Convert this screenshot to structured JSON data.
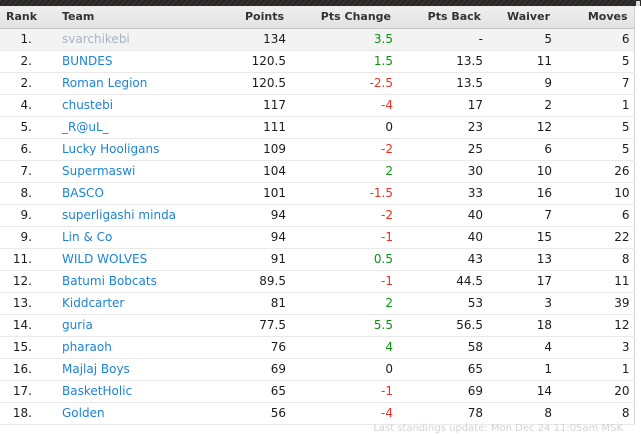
{
  "colors": {
    "link": "#1d83d4",
    "green": "#0f9312",
    "red": "#ee3124",
    "muted_team": "#aab4bd"
  },
  "table": {
    "headers": [
      "Rank",
      "Team",
      "Points",
      "Pts Change",
      "Pts Back",
      "Waiver",
      "Moves"
    ],
    "rows": [
      {
        "rank": "1.",
        "team": "svarchikebi",
        "points": "134",
        "pts_change": "3.5",
        "change_color": "green",
        "pts_back": "-",
        "waiver": "5",
        "moves": "6",
        "current": true
      },
      {
        "rank": "2.",
        "team": "BUNDES",
        "points": "120.5",
        "pts_change": "1.5",
        "change_color": "green",
        "pts_back": "13.5",
        "waiver": "11",
        "moves": "5",
        "current": false
      },
      {
        "rank": "2.",
        "team": "Roman Legion",
        "points": "120.5",
        "pts_change": "-2.5",
        "change_color": "red",
        "pts_back": "13.5",
        "waiver": "9",
        "moves": "7",
        "current": false
      },
      {
        "rank": "4.",
        "team": "chustebi",
        "points": "117",
        "pts_change": "-4",
        "change_color": "red",
        "pts_back": "17",
        "waiver": "2",
        "moves": "1",
        "current": false
      },
      {
        "rank": "5.",
        "team": "_R@uL_",
        "points": "111",
        "pts_change": "0",
        "change_color": "neutral",
        "pts_back": "23",
        "waiver": "12",
        "moves": "5",
        "current": false
      },
      {
        "rank": "6.",
        "team": "Lucky Hooligans",
        "points": "109",
        "pts_change": "-2",
        "change_color": "red",
        "pts_back": "25",
        "waiver": "6",
        "moves": "5",
        "current": false
      },
      {
        "rank": "7.",
        "team": "Supermaswi",
        "points": "104",
        "pts_change": "2",
        "change_color": "green",
        "pts_back": "30",
        "waiver": "10",
        "moves": "26",
        "current": false
      },
      {
        "rank": "8.",
        "team": "BASCO",
        "points": "101",
        "pts_change": "-1.5",
        "change_color": "red",
        "pts_back": "33",
        "waiver": "16",
        "moves": "10",
        "current": false
      },
      {
        "rank": "9.",
        "team": "superligashi minda",
        "points": "94",
        "pts_change": "-2",
        "change_color": "red",
        "pts_back": "40",
        "waiver": "7",
        "moves": "6",
        "current": false
      },
      {
        "rank": "9.",
        "team": "Lin & Co",
        "points": "94",
        "pts_change": "-1",
        "change_color": "red",
        "pts_back": "40",
        "waiver": "15",
        "moves": "22",
        "current": false
      },
      {
        "rank": "11.",
        "team": "WILD WOLVES",
        "points": "91",
        "pts_change": "0.5",
        "change_color": "green",
        "pts_back": "43",
        "waiver": "13",
        "moves": "8",
        "current": false
      },
      {
        "rank": "12.",
        "team": "Batumi Bobcats",
        "points": "89.5",
        "pts_change": "-1",
        "change_color": "red",
        "pts_back": "44.5",
        "waiver": "17",
        "moves": "11",
        "current": false
      },
      {
        "rank": "13.",
        "team": "Kiddcarter",
        "points": "81",
        "pts_change": "2",
        "change_color": "green",
        "pts_back": "53",
        "waiver": "3",
        "moves": "39",
        "current": false
      },
      {
        "rank": "14.",
        "team": "guria",
        "points": "77.5",
        "pts_change": "5.5",
        "change_color": "green",
        "pts_back": "56.5",
        "waiver": "18",
        "moves": "12",
        "current": false
      },
      {
        "rank": "15.",
        "team": "pharaoh",
        "points": "76",
        "pts_change": "4",
        "change_color": "green",
        "pts_back": "58",
        "waiver": "4",
        "moves": "3",
        "current": false
      },
      {
        "rank": "16.",
        "team": "Majlaj Boys",
        "points": "69",
        "pts_change": "0",
        "change_color": "neutral",
        "pts_back": "65",
        "waiver": "1",
        "moves": "1",
        "current": false
      },
      {
        "rank": "17.",
        "team": "BasketHolic",
        "points": "65",
        "pts_change": "-1",
        "change_color": "red",
        "pts_back": "69",
        "waiver": "14",
        "moves": "20",
        "current": false
      },
      {
        "rank": "18.",
        "team": "Golden",
        "points": "56",
        "pts_change": "-4",
        "change_color": "red",
        "pts_back": "78",
        "waiver": "8",
        "moves": "8",
        "current": false
      }
    ]
  },
  "footer": {
    "updated_text": "Last standings update: Mon Dec 24 11:05am MSK"
  }
}
